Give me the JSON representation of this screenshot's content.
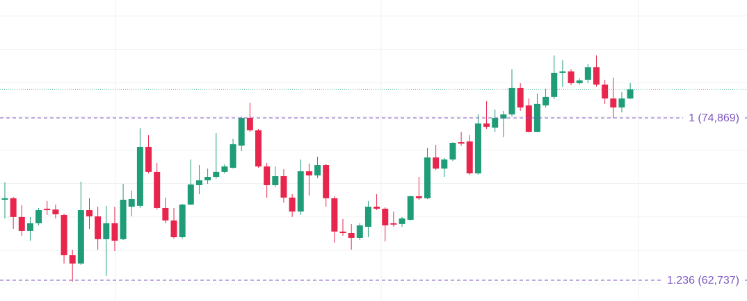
{
  "chart_data": {
    "type": "candlestick",
    "ylim": [
      61180,
      83680
    ],
    "grid": true,
    "up_color": "#1f9d78",
    "down_color": "#e8254c",
    "fib_color": "#7e57c2",
    "fib_levels": [
      {
        "value": 74869,
        "label": "1 (74,869)"
      },
      {
        "value": 62737,
        "label": "1.236 (62,737)"
      }
    ],
    "open": [
      68750,
      68860,
      67460,
      66420,
      66990,
      68080,
      68020,
      67610,
      64600,
      63980,
      67970,
      67510,
      65800,
      66990,
      65800,
      68230,
      68290,
      72690,
      70830,
      68130,
      67200,
      65950,
      68390,
      69840,
      70200,
      70460,
      70830,
      71140,
      72800,
      74870,
      73940,
      71240,
      69840,
      70510,
      68910,
      67870,
      70880,
      70570,
      71340,
      68860,
      66370,
      66260,
      65900,
      66730,
      68230,
      68080,
      66990,
      66940,
      67250,
      69010,
      68860,
      71910,
      71080,
      71760,
      73050,
      73110,
      70720,
      74450,
      74140,
      74820,
      75130,
      77100,
      75800,
      73830,
      75800,
      76430,
      78240,
      78340,
      77460,
      77720,
      78650,
      77360,
      76320,
      75650,
      76320
    ],
    "high": [
      70050,
      68960,
      68340,
      67460,
      68130,
      68650,
      68390,
      67710,
      65020,
      70100,
      68860,
      68230,
      68290,
      68230,
      69940,
      69430,
      74090,
      73570,
      71500,
      68910,
      68130,
      68440,
      71760,
      71340,
      71080,
      73730,
      71400,
      73310,
      74970,
      76010,
      74040,
      71500,
      71240,
      71030,
      69170,
      71760,
      71450,
      71970,
      71450,
      69010,
      67300,
      66940,
      66990,
      68650,
      69170,
      68180,
      67870,
      67460,
      69060,
      70460,
      72640,
      72850,
      71860,
      73050,
      73830,
      73570,
      75130,
      76110,
      75490,
      75390,
      78500,
      77460,
      76320,
      76680,
      77050,
      79540,
      79170,
      78500,
      77830,
      78910,
      79540,
      77720,
      77880,
      76790,
      77460
    ],
    "low": [
      67350,
      66570,
      66060,
      65690,
      66830,
      67610,
      67350,
      63980,
      62630,
      63880,
      66570,
      65020,
      63050,
      64910,
      65740,
      67510,
      68130,
      70720,
      68020,
      66990,
      65850,
      65850,
      68340,
      69170,
      69940,
      70310,
      70720,
      71080,
      72380,
      73830,
      71140,
      68910,
      69680,
      68540,
      67460,
      67610,
      69060,
      70360,
      68230,
      65540,
      66060,
      65020,
      65740,
      65950,
      67970,
      65640,
      66730,
      66730,
      67200,
      68750,
      68800,
      70980,
      70460,
      71650,
      72800,
      70620,
      70620,
      74040,
      73830,
      73420,
      74970,
      75390,
      73780,
      73780,
      75650,
      76270,
      77200,
      77310,
      77360,
      77460,
      77200,
      75910,
      74870,
      75280,
      76270
    ],
    "close": [
      68860,
      67460,
      66420,
      66990,
      67970,
      67970,
      67660,
      64600,
      63980,
      67970,
      67510,
      65800,
      66990,
      65690,
      68750,
      68800,
      72690,
      70830,
      68130,
      67200,
      65950,
      68390,
      69890,
      70200,
      70460,
      70830,
      71240,
      72900,
      74870,
      73940,
      71240,
      69840,
      70510,
      68910,
      67870,
      70880,
      70570,
      71340,
      68860,
      66370,
      66260,
      65900,
      66830,
      68230,
      68080,
      66830,
      66890,
      67350,
      69010,
      68860,
      71910,
      71080,
      71760,
      73000,
      72950,
      70720,
      74450,
      74200,
      74870,
      75130,
      77100,
      75650,
      73830,
      75910,
      76430,
      78240,
      78340,
      77460,
      77670,
      78650,
      77360,
      76320,
      75650,
      76320,
      77000
    ]
  }
}
